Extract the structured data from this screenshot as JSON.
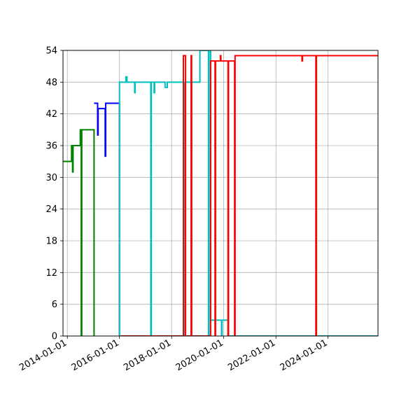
{
  "chart_data": {
    "type": "line",
    "title": "",
    "xlabel": "",
    "ylabel": "",
    "x_axis_type": "date",
    "xlim": [
      "2013-11-01",
      "2025-12-01"
    ],
    "ylim": [
      0,
      54
    ],
    "grid": true,
    "legend": "none",
    "x_ticks": [
      "2014-01-01",
      "2016-01-01",
      "2018-01-01",
      "2020-01-01",
      "2022-01-01",
      "2024-01-01"
    ],
    "y_ticks": [
      "0",
      "6",
      "12",
      "18",
      "24",
      "30",
      "36",
      "42",
      "48",
      "54"
    ],
    "series": [
      {
        "color": "#008000",
        "step": true,
        "points": [
          [
            "2013-11-01",
            33
          ],
          [
            "2014-03-01",
            33
          ],
          [
            "2014-03-01",
            36
          ],
          [
            "2014-03-15",
            36
          ],
          [
            "2014-03-15",
            31
          ],
          [
            "2014-03-22",
            31
          ],
          [
            "2014-03-22",
            36
          ],
          [
            "2014-07-01",
            36
          ],
          [
            "2014-07-01",
            39
          ],
          [
            "2014-07-15",
            39
          ],
          [
            "2014-07-15",
            0
          ],
          [
            "2014-07-22",
            0
          ],
          [
            "2014-07-22",
            39
          ],
          [
            "2015-01-10",
            39
          ],
          [
            "2015-01-10",
            0
          ]
        ]
      },
      {
        "color": "#0000ff",
        "step": true,
        "points": [
          [
            "2015-01-10",
            44
          ],
          [
            "2015-03-01",
            44
          ],
          [
            "2015-03-01",
            38
          ],
          [
            "2015-03-08",
            38
          ],
          [
            "2015-03-08",
            43
          ],
          [
            "2015-06-15",
            43
          ],
          [
            "2015-06-15",
            34
          ],
          [
            "2015-06-22",
            34
          ],
          [
            "2015-06-22",
            44
          ],
          [
            "2016-01-01",
            44
          ],
          [
            "2016-01-01",
            0
          ]
        ]
      },
      {
        "color": "#00bfbf",
        "step": true,
        "points": [
          [
            "2016-01-01",
            0
          ],
          [
            "2016-01-01",
            48
          ],
          [
            "2016-04-01",
            48
          ],
          [
            "2016-04-01",
            49
          ],
          [
            "2016-04-15",
            49
          ],
          [
            "2016-04-15",
            48
          ],
          [
            "2016-08-01",
            48
          ],
          [
            "2016-08-01",
            46
          ],
          [
            "2016-08-08",
            46
          ],
          [
            "2016-08-08",
            48
          ],
          [
            "2017-03-15",
            48
          ],
          [
            "2017-03-15",
            0
          ],
          [
            "2017-03-22",
            0
          ],
          [
            "2017-03-22",
            48
          ],
          [
            "2017-05-01",
            48
          ],
          [
            "2017-05-01",
            46
          ],
          [
            "2017-05-08",
            46
          ],
          [
            "2017-05-08",
            48
          ],
          [
            "2017-10-01",
            48
          ],
          [
            "2017-10-01",
            47
          ],
          [
            "2017-11-01",
            47
          ],
          [
            "2017-11-01",
            48
          ],
          [
            "2018-06-15",
            48
          ],
          [
            "2018-06-15",
            0
          ],
          [
            "2018-06-22",
            0
          ],
          [
            "2018-06-22",
            48
          ],
          [
            "2018-07-01",
            48
          ],
          [
            "2018-07-01",
            0
          ],
          [
            "2018-07-08",
            0
          ],
          [
            "2018-07-08",
            48
          ],
          [
            "2018-10-01",
            48
          ],
          [
            "2018-10-01",
            0
          ],
          [
            "2018-10-08",
            0
          ],
          [
            "2018-10-08",
            48
          ],
          [
            "2019-02-01",
            48
          ],
          [
            "2019-02-01",
            54
          ],
          [
            "2019-06-01",
            54
          ],
          [
            "2019-06-01",
            0
          ],
          [
            "2019-06-08",
            0
          ],
          [
            "2019-06-08",
            54
          ],
          [
            "2019-07-01",
            54
          ],
          [
            "2019-07-01",
            3
          ],
          [
            "2019-12-01",
            3
          ],
          [
            "2019-12-01",
            0
          ],
          [
            "2019-12-08",
            0
          ],
          [
            "2019-12-08",
            3
          ],
          [
            "2020-03-01",
            3
          ],
          [
            "2020-03-01",
            0
          ],
          [
            "2025-12-01",
            0
          ]
        ]
      },
      {
        "color": "#ff0000",
        "step": true,
        "points": [
          [
            "2016-01-15",
            0
          ],
          [
            "2018-06-15",
            0
          ],
          [
            "2018-06-15",
            53
          ],
          [
            "2018-07-15",
            53
          ],
          [
            "2018-07-15",
            0
          ],
          [
            "2018-10-01",
            0
          ],
          [
            "2018-10-01",
            53
          ],
          [
            "2018-10-08",
            53
          ],
          [
            "2018-10-08",
            0
          ],
          [
            "2019-07-01",
            0
          ],
          [
            "2019-07-01",
            52
          ],
          [
            "2019-09-01",
            52
          ],
          [
            "2019-09-01",
            0
          ],
          [
            "2019-09-08",
            0
          ],
          [
            "2019-09-08",
            52
          ],
          [
            "2019-11-15",
            52
          ],
          [
            "2019-11-15",
            53
          ],
          [
            "2019-11-22",
            53
          ],
          [
            "2019-11-22",
            52
          ],
          [
            "2020-03-01",
            52
          ],
          [
            "2020-03-01",
            0
          ],
          [
            "2020-03-08",
            0
          ],
          [
            "2020-03-08",
            52
          ],
          [
            "2020-06-01",
            52
          ],
          [
            "2020-06-01",
            0
          ],
          [
            "2020-06-08",
            0
          ],
          [
            "2020-06-08",
            53
          ],
          [
            "2023-01-01",
            53
          ],
          [
            "2023-01-01",
            52
          ],
          [
            "2023-01-08",
            52
          ],
          [
            "2023-01-08",
            53
          ],
          [
            "2023-07-15",
            53
          ],
          [
            "2023-07-15",
            0
          ],
          [
            "2023-07-22",
            0
          ],
          [
            "2023-07-22",
            53
          ],
          [
            "2025-12-01",
            53
          ]
        ]
      }
    ]
  }
}
